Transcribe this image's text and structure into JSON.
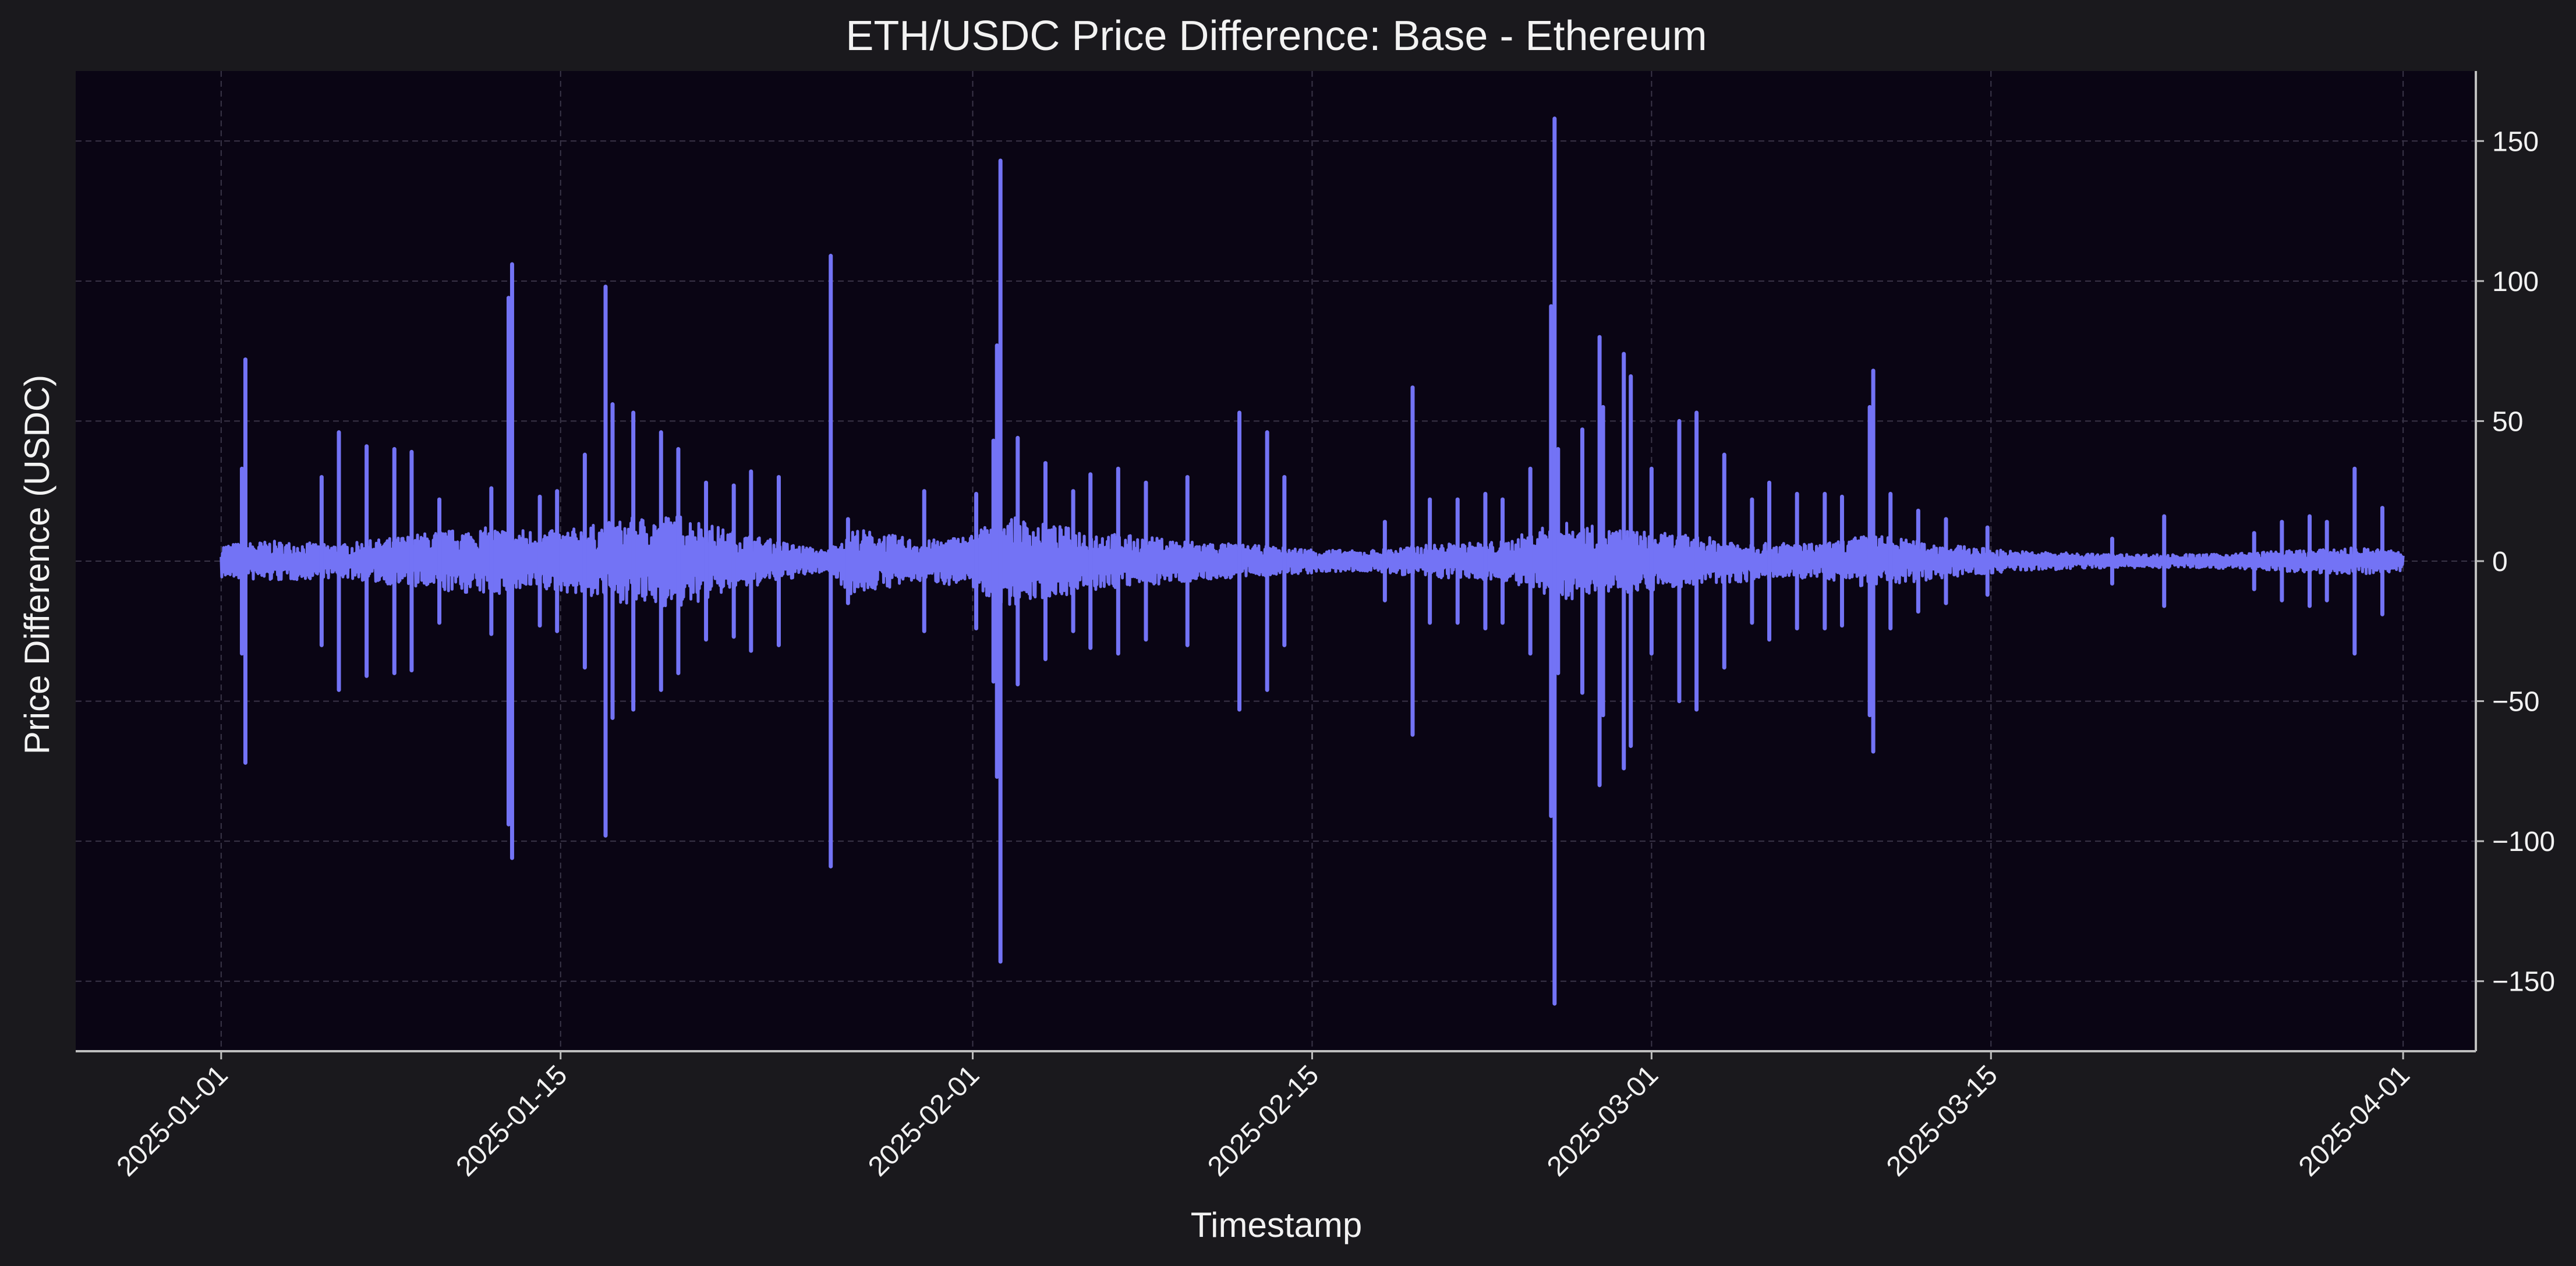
{
  "chart_data": {
    "type": "line",
    "title": "ETH/USDC Price Difference: Base - Ethereum",
    "xlabel": "Timestamp",
    "ylabel": "Price Difference (USDC)",
    "x_range": [
      "2024-12-26",
      "2025-04-04"
    ],
    "ylim": [
      -175,
      175
    ],
    "y_axis_side": "right",
    "grid": true,
    "x_ticks": [
      "2025-01-01",
      "2025-01-15",
      "2025-02-01",
      "2025-02-15",
      "2025-03-01",
      "2025-03-15",
      "2025-04-01"
    ],
    "y_ticks": [
      -150,
      -100,
      -50,
      0,
      50,
      100,
      150
    ],
    "series": [
      {
        "color": "#7373f5",
        "baseline_band": [
          [
            "2025-01-01",
            5
          ],
          [
            "2025-01-03",
            6
          ],
          [
            "2025-01-06",
            5
          ],
          [
            "2025-01-10",
            9
          ],
          [
            "2025-01-12",
            10
          ],
          [
            "2025-01-15",
            9
          ],
          [
            "2025-01-18",
            13
          ],
          [
            "2025-01-20",
            14
          ],
          [
            "2025-01-22",
            9
          ],
          [
            "2025-01-24",
            6
          ],
          [
            "2025-01-26",
            3
          ],
          [
            "2025-01-27",
            10
          ],
          [
            "2025-01-30",
            6
          ],
          [
            "2025-02-01",
            8
          ],
          [
            "2025-02-02",
            14
          ],
          [
            "2025-02-04",
            11
          ],
          [
            "2025-02-07",
            8
          ],
          [
            "2025-02-10",
            6
          ],
          [
            "2025-02-14",
            4
          ],
          [
            "2025-02-17",
            3
          ],
          [
            "2025-02-20",
            5
          ],
          [
            "2025-02-23",
            6
          ],
          [
            "2025-02-25",
            12
          ],
          [
            "2025-02-27",
            10
          ],
          [
            "2025-03-02",
            8
          ],
          [
            "2025-03-05",
            6
          ],
          [
            "2025-03-08",
            5
          ],
          [
            "2025-03-10",
            8
          ],
          [
            "2025-03-13",
            5
          ],
          [
            "2025-03-16",
            3
          ],
          [
            "2025-03-20",
            2
          ],
          [
            "2025-03-24",
            2
          ],
          [
            "2025-03-27",
            3
          ],
          [
            "2025-03-30",
            4
          ],
          [
            "2025-04-01",
            3
          ]
        ],
        "spikes": [
          [
            "2025-01-02",
            33,
            -33
          ],
          [
            "2025-01-02",
            72,
            -72
          ],
          [
            "2025-01-05",
            30,
            -30
          ],
          [
            "2025-01-06",
            46,
            -46
          ],
          [
            "2025-01-07",
            41,
            -41
          ],
          [
            "2025-01-08",
            40,
            -40
          ],
          [
            "2025-01-09",
            39,
            -39
          ],
          [
            "2025-01-10",
            22,
            -22
          ],
          [
            "2025-01-12",
            26,
            -26
          ],
          [
            "2025-01-13",
            94,
            -94
          ],
          [
            "2025-01-13",
            106,
            -106
          ],
          [
            "2025-01-14",
            23,
            -23
          ],
          [
            "2025-01-15",
            25,
            -25
          ],
          [
            "2025-01-16",
            38,
            -38
          ],
          [
            "2025-01-17",
            56,
            -56
          ],
          [
            "2025-01-17",
            98,
            -98
          ],
          [
            "2025-01-18",
            53,
            -53
          ],
          [
            "2025-01-19",
            46,
            -46
          ],
          [
            "2025-01-20",
            40,
            -40
          ],
          [
            "2025-01-21",
            28,
            -28
          ],
          [
            "2025-01-22",
            27,
            -27
          ],
          [
            "2025-01-23",
            32,
            -32
          ],
          [
            "2025-01-24",
            30,
            -30
          ],
          [
            "2025-01-26",
            109,
            -109
          ],
          [
            "2025-01-27",
            15,
            -15
          ],
          [
            "2025-01-30",
            25,
            -25
          ],
          [
            "2025-02-01",
            24,
            -24
          ],
          [
            "2025-02-02",
            43,
            -43
          ],
          [
            "2025-02-02",
            77,
            -77
          ],
          [
            "2025-02-02",
            143,
            -143
          ],
          [
            "2025-02-03",
            44,
            -44
          ],
          [
            "2025-02-04",
            35,
            -35
          ],
          [
            "2025-02-05",
            25,
            -25
          ],
          [
            "2025-02-06",
            31,
            -31
          ],
          [
            "2025-02-07",
            33,
            -33
          ],
          [
            "2025-02-08",
            28,
            -28
          ],
          [
            "2025-02-10",
            30,
            -30
          ],
          [
            "2025-02-12",
            53,
            -53
          ],
          [
            "2025-02-13",
            46,
            -46
          ],
          [
            "2025-02-14",
            30,
            -30
          ],
          [
            "2025-02-18",
            14,
            -14
          ],
          [
            "2025-02-19",
            62,
            -62
          ],
          [
            "2025-02-20",
            22,
            -22
          ],
          [
            "2025-02-21",
            22,
            -22
          ],
          [
            "2025-02-22",
            24,
            -24
          ],
          [
            "2025-02-23",
            22,
            -22
          ],
          [
            "2025-02-24",
            33,
            -33
          ],
          [
            "2025-02-25",
            40,
            -40
          ],
          [
            "2025-02-25",
            91,
            -91
          ],
          [
            "2025-02-25",
            158,
            -158
          ],
          [
            "2025-02-26",
            47,
            -47
          ],
          [
            "2025-02-27",
            80,
            -80
          ],
          [
            "2025-02-27",
            55,
            -55
          ],
          [
            "2025-02-28",
            66,
            -66
          ],
          [
            "2025-02-28",
            74,
            -74
          ],
          [
            "2025-03-01",
            33,
            -33
          ],
          [
            "2025-03-02",
            50,
            -50
          ],
          [
            "2025-03-03",
            53,
            -53
          ],
          [
            "2025-03-04",
            38,
            -38
          ],
          [
            "2025-03-05",
            22,
            -22
          ],
          [
            "2025-03-06",
            28,
            -28
          ],
          [
            "2025-03-07",
            24,
            -24
          ],
          [
            "2025-03-08",
            24,
            -24
          ],
          [
            "2025-03-09",
            23,
            -23
          ],
          [
            "2025-03-10",
            55,
            -55
          ],
          [
            "2025-03-10",
            68,
            -68
          ],
          [
            "2025-03-11",
            24,
            -24
          ],
          [
            "2025-03-12",
            18,
            -18
          ],
          [
            "2025-03-13",
            15,
            -15
          ],
          [
            "2025-03-15",
            12,
            -12
          ],
          [
            "2025-03-20",
            8,
            -8
          ],
          [
            "2025-03-22",
            16,
            -16
          ],
          [
            "2025-03-26",
            10,
            -10
          ],
          [
            "2025-03-27",
            14,
            -14
          ],
          [
            "2025-03-28",
            16,
            -16
          ],
          [
            "2025-03-29",
            14,
            -14
          ],
          [
            "2025-03-30",
            33,
            -33
          ],
          [
            "2025-03-31",
            19,
            -19
          ]
        ]
      }
    ]
  },
  "colors": {
    "page_background": "#1a191d",
    "plot_background": "#0a0514",
    "series": "#7373f5",
    "grid": "#3a3548",
    "axis_spine": "#bfbfbf",
    "text": "#f2f2f2"
  }
}
